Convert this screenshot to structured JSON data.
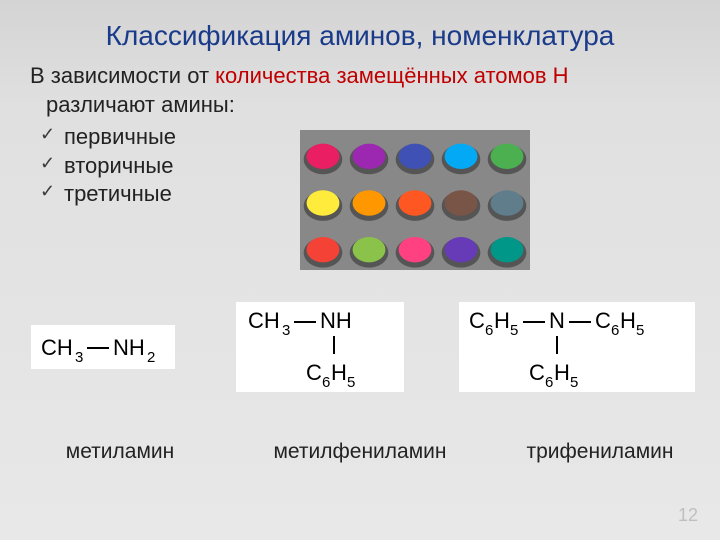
{
  "title": "Классификация аминов, номенклатура",
  "intro_part1": "В зависимости от ",
  "intro_red": "количества замещённых атомов Н",
  "intro_part2": " различают амины:",
  "list": [
    "первичные",
    "вторичные",
    "третичные"
  ],
  "formulas": [
    {
      "label": "метиламин",
      "type": "f1"
    },
    {
      "label": "метилфениламин",
      "type": "f2"
    },
    {
      "label": "трифениламин",
      "type": "f3"
    }
  ],
  "slide_number": "12",
  "colors": {
    "title": "#1a3a8a",
    "text": "#222222",
    "highlight": "#c00000",
    "slide_num": "#bfbfbf",
    "bg_top": "#d4d4d4",
    "bg_bottom": "#e8e8e8"
  },
  "pigments": {
    "rows": 3,
    "cols": 5,
    "colors": [
      "#e91e63",
      "#9c27b0",
      "#3f51b5",
      "#03a9f4",
      "#4caf50",
      "#ffeb3b",
      "#ff9800",
      "#ff5722",
      "#795548",
      "#607d8b",
      "#f44336",
      "#8bc34a",
      "#ff4081",
      "#673ab7",
      "#009688"
    ]
  },
  "style": {
    "title_fontsize": 28,
    "body_fontsize": 22,
    "formula_fontsize": 22,
    "label_fontsize": 21
  }
}
